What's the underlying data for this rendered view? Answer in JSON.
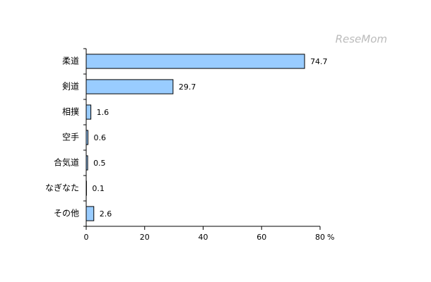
{
  "chart_data": {
    "type": "barh",
    "watermark": "ReseMom",
    "categories": [
      "柔道",
      "剣道",
      "相撲",
      "空手",
      "合気道",
      "なぎなた",
      "その他"
    ],
    "values": [
      74.7,
      29.7,
      1.6,
      0.6,
      0.5,
      0.1,
      2.6
    ],
    "color": "#99ccff",
    "xlim": [
      0,
      80
    ],
    "xticks": [
      0,
      20,
      40,
      60,
      80
    ],
    "x_unit": "%",
    "grid": false
  }
}
